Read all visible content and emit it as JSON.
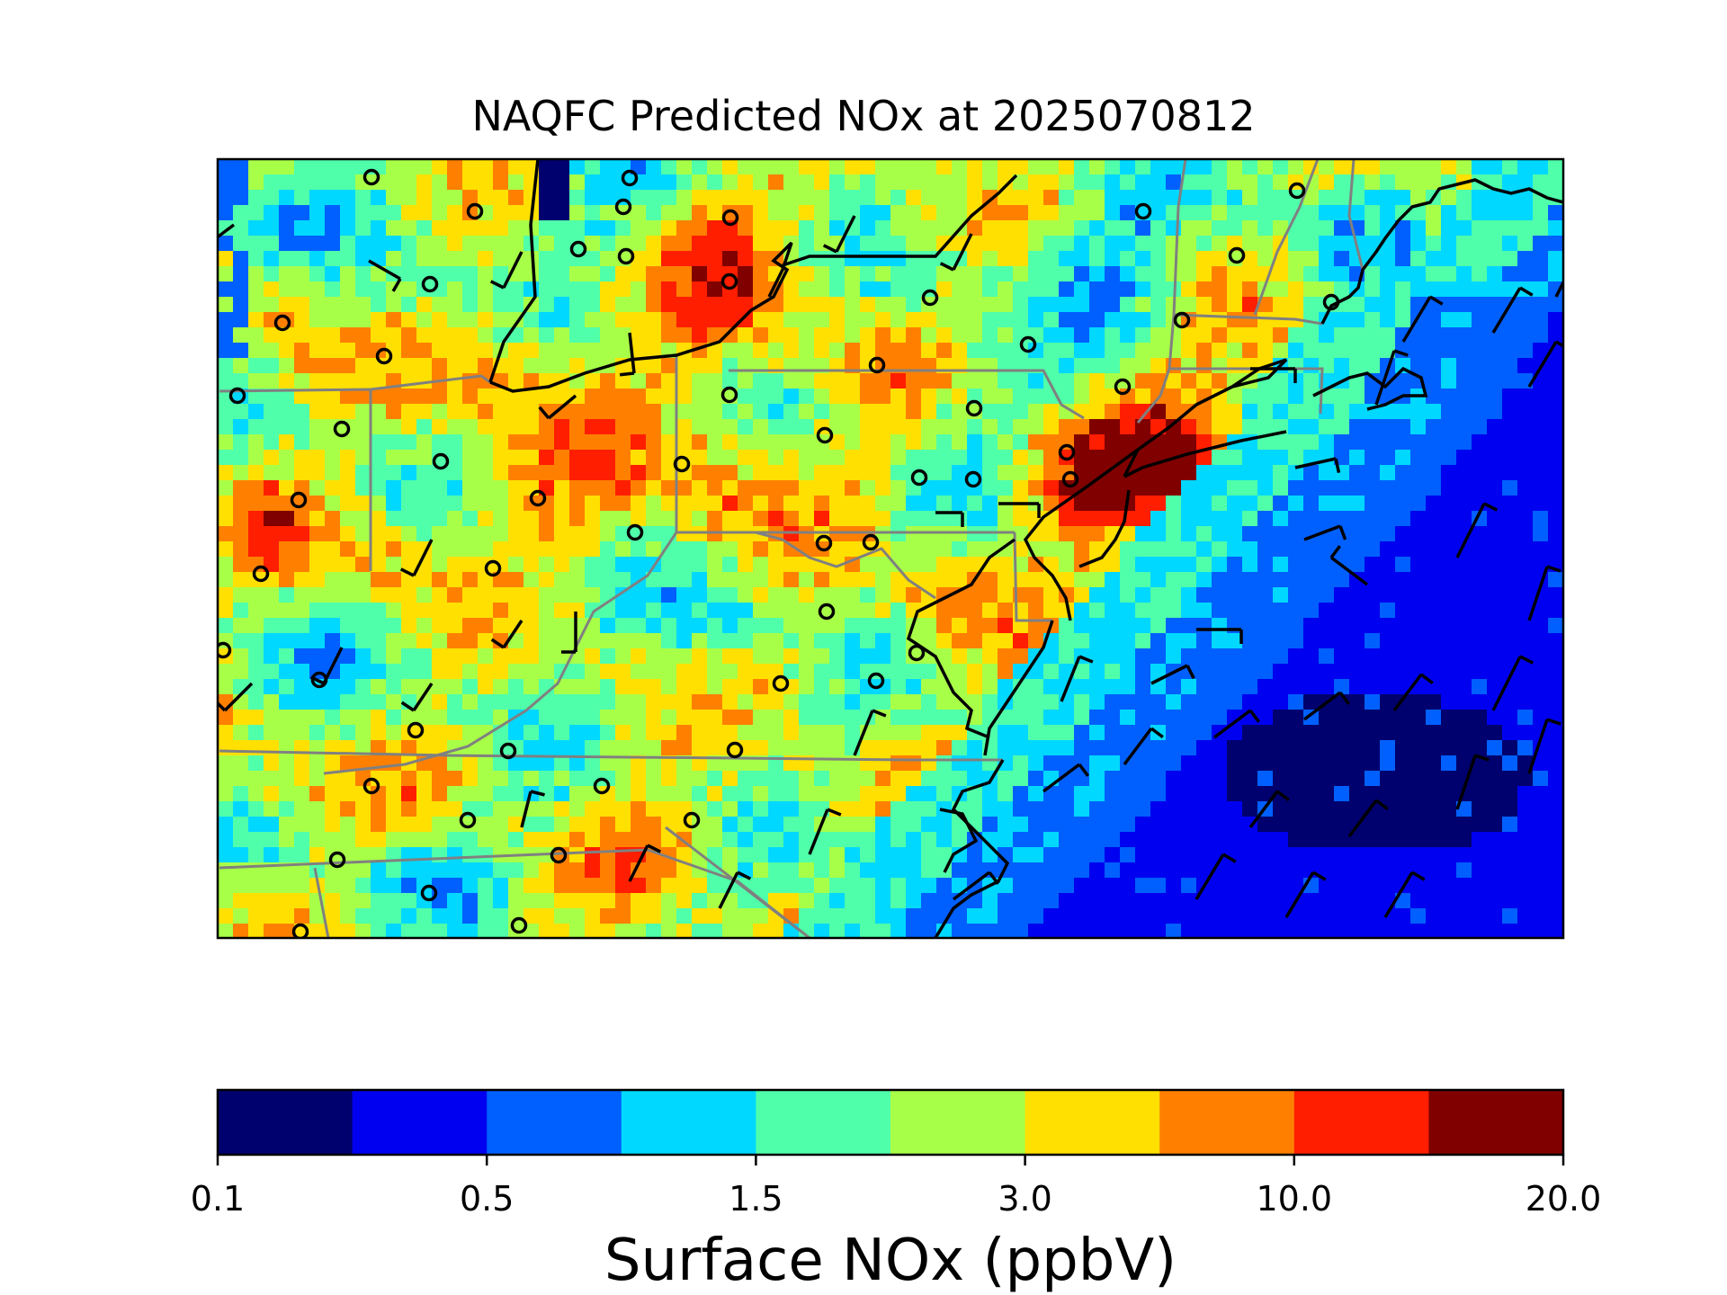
{
  "title": "NAQFC Predicted NOx at 2025070812",
  "colorbar": {
    "label": "Surface NOx (ppbV)",
    "ticks": [
      "0.1",
      "0.5",
      "1.5",
      "3.0",
      "10.0",
      "20.0"
    ],
    "colors": [
      "#00006e",
      "#0000f0",
      "#0060ff",
      "#00d8ff",
      "#50ffaa",
      "#a8ff48",
      "#ffe000",
      "#ff8000",
      "#ff1e00",
      "#800000"
    ]
  },
  "map": {
    "region": "Eastern United States (Mid-Atlantic / Northeast)",
    "field": "surface NOx",
    "overlays": [
      "state-borders",
      "coastlines",
      "wind-barbs",
      "monitoring-sites"
    ],
    "ocean_level_index": 1,
    "hotspot_level_index": 9
  }
}
